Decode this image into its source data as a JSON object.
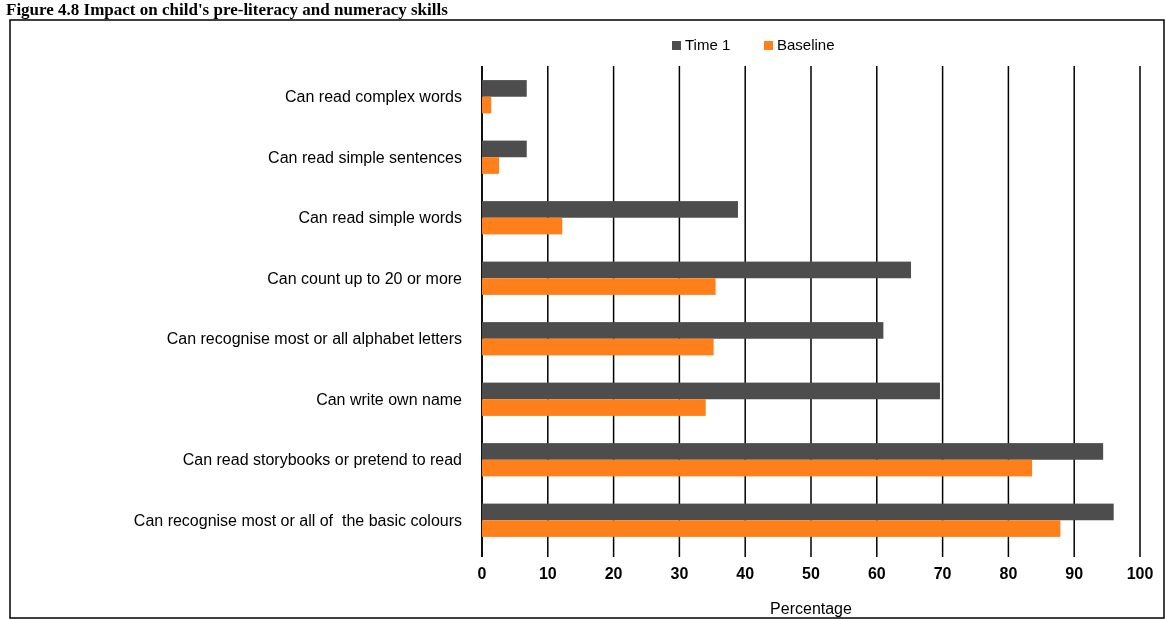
{
  "chart_data": {
    "type": "bar",
    "orientation": "horizontal",
    "title": "Figure 4.8 Impact on child's pre-literacy and numeracy skills",
    "xlabel": "Percentage",
    "categories": [
      "Can read complex words",
      "Can read simple sentences",
      "Can read simple words",
      "Can count up to 20 or more",
      "Can recognise most or all alphabet letters",
      "Can write own name",
      "Can read storybooks or pretend to read",
      "Can recognise most or all of  the basic colours"
    ],
    "series": [
      {
        "name": "Time 1",
        "color": "#4d4d4d",
        "values": [
          6.8,
          6.8,
          38.9,
          65.2,
          61.0,
          69.6,
          94.4,
          96.0
        ]
      },
      {
        "name": "Baseline",
        "color": "#ff7f1a",
        "values": [
          1.4,
          2.6,
          12.2,
          35.5,
          35.2,
          34.0,
          83.6,
          87.9
        ]
      }
    ],
    "xlim": [
      0,
      100
    ],
    "xticks": [
      0,
      10,
      20,
      30,
      40,
      50,
      60,
      70,
      80,
      90,
      100
    ],
    "grid": "x",
    "legend": "top"
  }
}
